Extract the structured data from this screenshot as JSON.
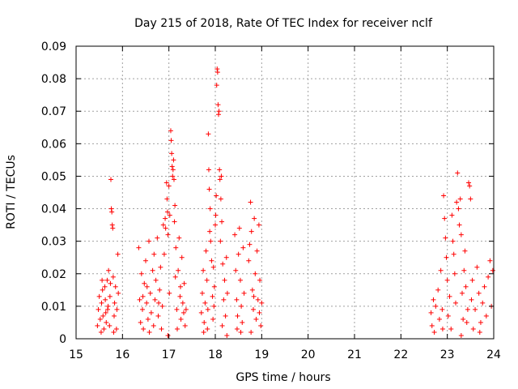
{
  "chart_data": {
    "type": "scatter",
    "title": "Day 215 of 2018, Rate Of TEC Index for receiver nclf",
    "xlabel": "GPS time / hours",
    "ylabel": "ROTI / TECUs",
    "xlim": [
      15,
      24
    ],
    "ylim": [
      0,
      0.09
    ],
    "grid": true,
    "marker": "+",
    "point_color": "#ff0000",
    "x_ticks": [
      15,
      16,
      17,
      18,
      19,
      20,
      21,
      22,
      23,
      24
    ],
    "x_tick_labels": [
      "15",
      "16",
      "17",
      "18",
      "19",
      "20",
      "21",
      "22",
      "23",
      "24"
    ],
    "y_ticks": [
      0,
      0.01,
      0.02,
      0.03,
      0.04,
      0.05,
      0.06,
      0.07,
      0.08,
      0.09
    ],
    "y_tick_labels": [
      "0",
      "0.01",
      "0.02",
      "0.03",
      "0.04",
      "0.05",
      "0.06",
      "0.07",
      "0.08",
      "0.09"
    ],
    "series": [
      {
        "name": "ROTI",
        "points": [
          [
            15.46,
            0.004
          ],
          [
            15.48,
            0.009
          ],
          [
            15.5,
            0.013
          ],
          [
            15.52,
            0.006
          ],
          [
            15.54,
            0.002
          ],
          [
            15.55,
            0.011
          ],
          [
            15.57,
            0.015
          ],
          [
            15.58,
            0.007
          ],
          [
            15.6,
            0.003
          ],
          [
            15.62,
            0.016
          ],
          [
            15.63,
            0.012
          ],
          [
            15.65,
            0.005
          ],
          [
            15.67,
            0.018
          ],
          [
            15.68,
            0.009
          ],
          [
            15.7,
            0.021
          ],
          [
            15.72,
            0.004
          ],
          [
            15.73,
            0.013
          ],
          [
            15.75,
            0.049
          ],
          [
            15.76,
            0.04
          ],
          [
            15.77,
            0.039
          ],
          [
            15.78,
            0.035
          ],
          [
            15.79,
            0.034
          ],
          [
            15.8,
            0.019
          ],
          [
            15.82,
            0.007
          ],
          [
            15.83,
            0.011
          ],
          [
            15.85,
            0.016
          ],
          [
            15.87,
            0.003
          ],
          [
            15.88,
            0.009
          ],
          [
            15.9,
            0.026
          ],
          [
            15.91,
            0.014
          ],
          [
            15.56,
            0.018
          ],
          [
            15.64,
            0.008
          ],
          [
            15.74,
            0.017
          ],
          [
            15.81,
            0.002
          ],
          [
            15.69,
            0.01
          ],
          [
            16.35,
            0.028
          ],
          [
            16.37,
            0.012
          ],
          [
            16.39,
            0.005
          ],
          [
            16.41,
            0.02
          ],
          [
            16.43,
            0.009
          ],
          [
            16.45,
            0.003
          ],
          [
            16.47,
            0.017
          ],
          [
            16.5,
            0.024
          ],
          [
            16.52,
            0.011
          ],
          [
            16.55,
            0.006
          ],
          [
            16.57,
            0.03
          ],
          [
            16.6,
            0.014
          ],
          [
            16.62,
            0.008
          ],
          [
            16.65,
            0.021
          ],
          [
            16.67,
            0.004
          ],
          [
            16.7,
            0.012
          ],
          [
            16.72,
            0.018
          ],
          [
            16.75,
            0.031
          ],
          [
            16.77,
            0.007
          ],
          [
            16.8,
            0.015
          ],
          [
            16.82,
            0.022
          ],
          [
            16.84,
            0.003
          ],
          [
            16.86,
            0.01
          ],
          [
            16.88,
            0.035
          ],
          [
            16.9,
            0.026
          ],
          [
            16.92,
            0.037
          ],
          [
            16.93,
            0.034
          ],
          [
            16.95,
            0.048
          ],
          [
            16.96,
            0.043
          ],
          [
            16.97,
            0.039
          ],
          [
            16.98,
            0.032
          ],
          [
            17.0,
            0.047
          ],
          [
            17.02,
            0.038
          ],
          [
            17.04,
            0.064
          ],
          [
            17.05,
            0.061
          ],
          [
            17.06,
            0.057
          ],
          [
            17.07,
            0.053
          ],
          [
            17.08,
            0.05
          ],
          [
            17.09,
            0.052
          ],
          [
            17.1,
            0.055
          ],
          [
            17.11,
            0.049
          ],
          [
            17.12,
            0.036
          ],
          [
            17.13,
            0.041
          ],
          [
            17.15,
            0.028
          ],
          [
            17.17,
            0.009
          ],
          [
            17.2,
            0.021
          ],
          [
            17.22,
            0.031
          ],
          [
            17.24,
            0.013
          ],
          [
            17.26,
            0.006
          ],
          [
            17.28,
            0.025
          ],
          [
            17.3,
            0.011
          ],
          [
            17.33,
            0.017
          ],
          [
            17.35,
            0.004
          ],
          [
            17.37,
            0.009
          ],
          [
            16.44,
            0.013
          ],
          [
            16.58,
            0.002
          ],
          [
            16.68,
            0.026
          ],
          [
            16.78,
            0.011
          ],
          [
            16.98,
            0.001
          ],
          [
            17.01,
            0.014
          ],
          [
            17.14,
            0.019
          ],
          [
            17.18,
            0.003
          ],
          [
            17.25,
            0.016
          ],
          [
            17.32,
            0.008
          ],
          [
            16.53,
            0.016
          ],
          [
            17.7,
            0.008
          ],
          [
            17.72,
            0.014
          ],
          [
            17.74,
            0.021
          ],
          [
            17.76,
            0.005
          ],
          [
            17.78,
            0.011
          ],
          [
            17.8,
            0.027
          ],
          [
            17.82,
            0.018
          ],
          [
            17.84,
            0.009
          ],
          [
            17.85,
            0.063
          ],
          [
            17.86,
            0.052
          ],
          [
            17.87,
            0.046
          ],
          [
            17.88,
            0.033
          ],
          [
            17.89,
            0.04
          ],
          [
            17.9,
            0.03
          ],
          [
            17.92,
            0.024
          ],
          [
            17.94,
            0.013
          ],
          [
            17.95,
            0.006
          ],
          [
            17.96,
            0.022
          ],
          [
            17.98,
            0.016
          ],
          [
            18.0,
            0.035
          ],
          [
            18.01,
            0.038
          ],
          [
            18.02,
            0.044
          ],
          [
            18.03,
            0.078
          ],
          [
            18.04,
            0.083
          ],
          [
            18.05,
            0.082
          ],
          [
            18.06,
            0.072
          ],
          [
            18.07,
            0.069
          ],
          [
            18.08,
            0.07
          ],
          [
            18.09,
            0.052
          ],
          [
            18.1,
            0.049
          ],
          [
            18.11,
            0.03
          ],
          [
            18.12,
            0.043
          ],
          [
            18.13,
            0.05
          ],
          [
            18.14,
            0.036
          ],
          [
            18.16,
            0.023
          ],
          [
            18.18,
            0.012
          ],
          [
            18.2,
            0.018
          ],
          [
            18.22,
            0.007
          ],
          [
            18.24,
            0.025
          ],
          [
            18.26,
            0.014
          ],
          [
            17.75,
            0.002
          ],
          [
            17.83,
            0.003
          ],
          [
            17.97,
            0.01
          ],
          [
            18.15,
            0.004
          ],
          [
            18.25,
            0.001
          ],
          [
            18.42,
            0.032
          ],
          [
            18.44,
            0.021
          ],
          [
            18.46,
            0.012
          ],
          [
            18.48,
            0.007
          ],
          [
            18.5,
            0.026
          ],
          [
            18.52,
            0.034
          ],
          [
            18.54,
            0.018
          ],
          [
            18.56,
            0.01
          ],
          [
            18.58,
            0.005
          ],
          [
            18.6,
            0.028
          ],
          [
            18.62,
            0.014
          ],
          [
            18.47,
            0.003
          ],
          [
            18.55,
            0.002
          ],
          [
            18.72,
            0.024
          ],
          [
            18.74,
            0.029
          ],
          [
            18.76,
            0.042
          ],
          [
            18.78,
            0.033
          ],
          [
            18.8,
            0.015
          ],
          [
            18.82,
            0.009
          ],
          [
            18.84,
            0.037
          ],
          [
            18.86,
            0.02
          ],
          [
            18.88,
            0.006
          ],
          [
            18.9,
            0.027
          ],
          [
            18.92,
            0.012
          ],
          [
            18.94,
            0.035
          ],
          [
            18.96,
            0.018
          ],
          [
            18.98,
            0.004
          ],
          [
            19.0,
            0.011
          ],
          [
            18.77,
            0.002
          ],
          [
            18.83,
            0.013
          ],
          [
            18.95,
            0.008
          ],
          [
            22.65,
            0.008
          ],
          [
            22.67,
            0.004
          ],
          [
            22.7,
            0.012
          ],
          [
            22.72,
            0.002
          ],
          [
            22.75,
            0.01
          ],
          [
            22.8,
            0.015
          ],
          [
            22.83,
            0.006
          ],
          [
            22.86,
            0.021
          ],
          [
            22.89,
            0.009
          ],
          [
            22.92,
            0.044
          ],
          [
            22.94,
            0.037
          ],
          [
            22.96,
            0.031
          ],
          [
            22.98,
            0.025
          ],
          [
            23.0,
            0.018
          ],
          [
            23.02,
            0.007
          ],
          [
            23.05,
            0.013
          ],
          [
            23.08,
            0.003
          ],
          [
            23.1,
            0.038
          ],
          [
            23.12,
            0.03
          ],
          [
            23.14,
            0.026
          ],
          [
            23.16,
            0.02
          ],
          [
            23.18,
            0.011
          ],
          [
            23.2,
            0.042
          ],
          [
            23.22,
            0.051
          ],
          [
            23.24,
            0.04
          ],
          [
            23.26,
            0.035
          ],
          [
            23.28,
            0.043
          ],
          [
            23.3,
            0.032
          ],
          [
            23.32,
            0.014
          ],
          [
            23.34,
            0.006
          ],
          [
            23.36,
            0.021
          ],
          [
            23.38,
            0.027
          ],
          [
            23.4,
            0.016
          ],
          [
            23.42,
            0.005
          ],
          [
            23.44,
            0.009
          ],
          [
            23.46,
            0.048
          ],
          [
            23.48,
            0.047
          ],
          [
            23.5,
            0.043
          ],
          [
            23.52,
            0.012
          ],
          [
            23.54,
            0.018
          ],
          [
            23.56,
            0.003
          ],
          [
            23.6,
            0.009
          ],
          [
            23.64,
            0.022
          ],
          [
            23.68,
            0.014
          ],
          [
            23.72,
            0.005
          ],
          [
            23.76,
            0.011
          ],
          [
            23.8,
            0.016
          ],
          [
            23.84,
            0.007
          ],
          [
            23.88,
            0.019
          ],
          [
            23.92,
            0.024
          ],
          [
            23.95,
            0.01
          ],
          [
            23.98,
            0.021
          ],
          [
            23.7,
            0.002
          ],
          [
            23.3,
            0.001
          ],
          [
            22.9,
            0.003
          ]
        ]
      }
    ]
  }
}
